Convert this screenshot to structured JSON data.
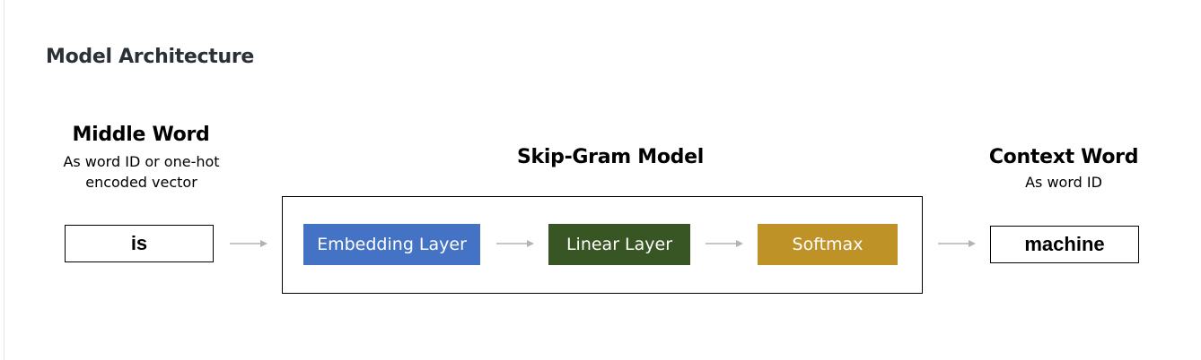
{
  "title": "Model Architecture",
  "middle_word": {
    "heading": "Middle Word",
    "sub_line1": "As word ID or one-hot",
    "sub_line2": "encoded vector",
    "value": "is"
  },
  "model": {
    "heading": "Skip-Gram Model",
    "layers": [
      {
        "label": "Embedding Layer",
        "color": "#4472c4"
      },
      {
        "label": "Linear Layer",
        "color": "#375623"
      },
      {
        "label": "Softmax",
        "color": "#bf9228"
      }
    ]
  },
  "context_word": {
    "heading": "Context Word",
    "sub_line1": "As word ID",
    "value": "machine"
  },
  "colors": {
    "arrow": "#b3b3b3",
    "text": "#000000"
  }
}
